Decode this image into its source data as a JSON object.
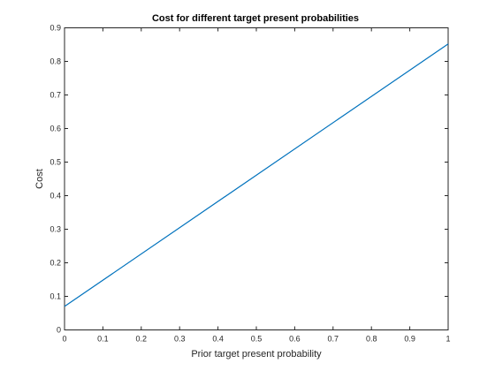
{
  "chart_data": {
    "type": "line",
    "title": "Cost for different target present probabilities",
    "xlabel": "Prior target present probability",
    "ylabel": "Cost",
    "xlim": [
      0,
      1
    ],
    "ylim": [
      0,
      0.9
    ],
    "xticks": [
      0,
      0.1,
      0.2,
      0.3,
      0.4,
      0.5,
      0.6,
      0.7,
      0.8,
      0.9,
      1
    ],
    "yticks": [
      0,
      0.1,
      0.2,
      0.3,
      0.4,
      0.5,
      0.6,
      0.7,
      0.8,
      0.9
    ],
    "xtick_labels": [
      "0",
      "0.1",
      "0.2",
      "0.3",
      "0.4",
      "0.5",
      "0.6",
      "0.7",
      "0.8",
      "0.9",
      "1"
    ],
    "ytick_labels": [
      "0",
      "0.1",
      "0.2",
      "0.3",
      "0.4",
      "0.5",
      "0.6",
      "0.7",
      "0.8",
      "0.9"
    ],
    "grid": false,
    "series": [
      {
        "name": "Cost",
        "color": "#0072bd",
        "x": [
          0,
          1
        ],
        "y": [
          0.07,
          0.852
        ]
      }
    ]
  }
}
